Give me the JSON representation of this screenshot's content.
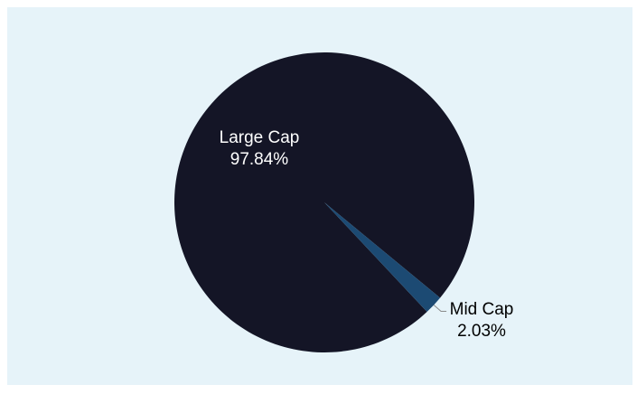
{
  "colors": {
    "background": "#e6f3f9",
    "large_cap": "#141526",
    "mid_cap": "#1c4a73",
    "leader": "#8a8a8a"
  },
  "chart_data": {
    "type": "pie",
    "title": "",
    "categories": [
      "Large Cap",
      "Mid Cap"
    ],
    "values": [
      97.84,
      2.03
    ],
    "value_labels": [
      "97.84%",
      "2.03%"
    ],
    "legend": "none"
  }
}
